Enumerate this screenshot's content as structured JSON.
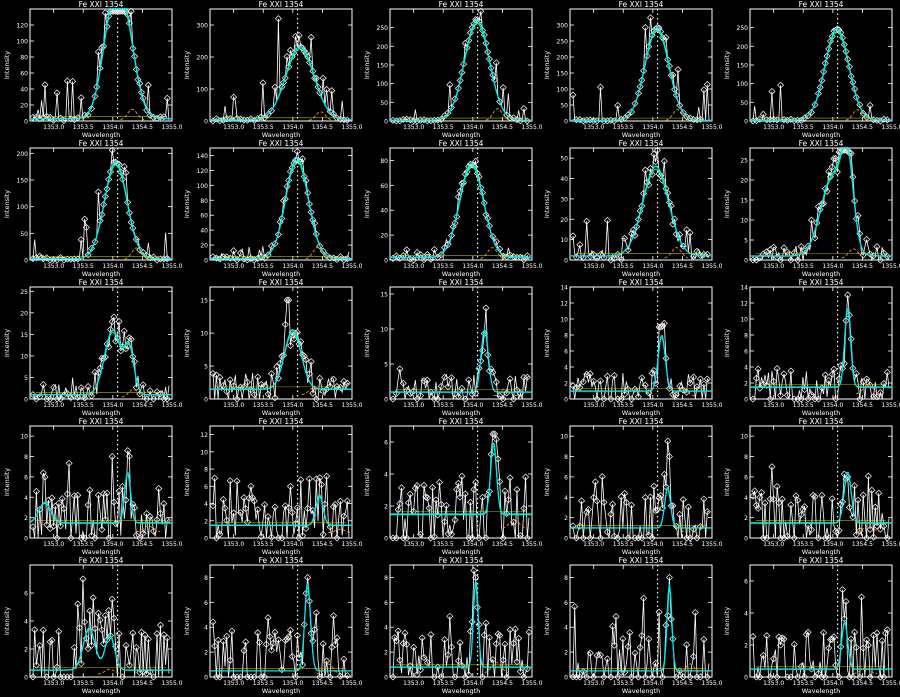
{
  "colors": {
    "background": "#000000",
    "axes": "#ffffff",
    "data": "#ffffff",
    "fit_cyan": "#00e5ff",
    "fit_green": "#00ff66",
    "component_orange": "#ff8c1a",
    "component_yellow": "#e0e000",
    "center_marker": "#ffffff"
  },
  "chart_data": [
    {
      "type": "line",
      "title": "Fe XXI 1354",
      "xlabel": "Wavelength",
      "ylabel": "Intensity",
      "xlim": [
        1352.6,
        1355.0
      ],
      "ylim": [
        0,
        140
      ],
      "xticks": [
        "1353.0",
        "1353.5",
        "1354.0",
        "1354.5",
        "1355.0"
      ],
      "yticks": [
        "0",
        "20",
        "40",
        "60",
        "80",
        "100",
        "120"
      ],
      "center": 1354.08,
      "peaks": [
        {
          "x": 1353.98,
          "amp": 112,
          "w": 0.17
        },
        {
          "x": 1354.22,
          "amp": 100,
          "w": 0.17
        }
      ],
      "baseline": 3,
      "noise": 4,
      "spike": null
    },
    {
      "type": "line",
      "title": "Fe XXI 1354",
      "xlabel": "Wavelength",
      "ylabel": "Intensity",
      "xlim": [
        1352.6,
        1355.0
      ],
      "ylim": [
        0,
        350
      ],
      "xticks": [
        "1353.0",
        "1353.5",
        "1354.0",
        "1354.5",
        "1355.0"
      ],
      "yticks": [
        "0",
        "100",
        "200",
        "300"
      ],
      "center": 1354.08,
      "peaks": [
        {
          "x": 1354.12,
          "amp": 230,
          "w": 0.24
        }
      ],
      "baseline": 3,
      "noise": 6,
      "spike": {
        "x": 1353.75,
        "amp": 320
      }
    },
    {
      "type": "line",
      "title": "Fe XXI 1354",
      "xlabel": "Wavelength",
      "ylabel": "Intensity",
      "xlim": [
        1352.6,
        1355.0
      ],
      "ylim": [
        0,
        300
      ],
      "xticks": [
        "1353.0",
        "1353.5",
        "1354.0",
        "1354.5",
        "1355.0"
      ],
      "yticks": [
        "0",
        "50",
        "100",
        "150",
        "200",
        "250"
      ],
      "center": 1354.08,
      "peaks": [
        {
          "x": 1354.07,
          "amp": 268,
          "w": 0.21
        }
      ],
      "baseline": 2,
      "noise": 4,
      "spike": null
    },
    {
      "type": "line",
      "title": "Fe XXI 1354",
      "xlabel": "Wavelength",
      "ylabel": "Intensity",
      "xlim": [
        1352.6,
        1355.0
      ],
      "ylim": [
        0,
        350
      ],
      "xticks": [
        "1353.0",
        "1353.5",
        "1354.0",
        "1354.5",
        "1355.0"
      ],
      "yticks": [
        "0",
        "50",
        "100",
        "150",
        "200",
        "250",
        "300"
      ],
      "center": 1354.08,
      "peaks": [
        {
          "x": 1354.07,
          "amp": 290,
          "w": 0.2
        }
      ],
      "baseline": 2,
      "noise": 4,
      "spike": null
    },
    {
      "type": "line",
      "title": "Fe XXI 1354",
      "xlabel": "Wavelength",
      "ylabel": "Intensity",
      "xlim": [
        1352.6,
        1355.0
      ],
      "ylim": [
        0,
        300
      ],
      "xticks": [
        "1353.0",
        "1353.5",
        "1354.0",
        "1354.5",
        "1355.0"
      ],
      "yticks": [
        "0",
        "50",
        "100",
        "150",
        "200",
        "250"
      ],
      "center": 1354.08,
      "peaks": [
        {
          "x": 1354.07,
          "amp": 245,
          "w": 0.2
        }
      ],
      "baseline": 2,
      "noise": 4,
      "spike": null
    },
    {
      "type": "line",
      "title": "Fe XXI 1354",
      "xlabel": "Wavelength",
      "ylabel": "Intensity",
      "xlim": [
        1352.6,
        1355.0
      ],
      "ylim": [
        0,
        210
      ],
      "xticks": [
        "1353.0",
        "1353.5",
        "1354.0",
        "1354.5",
        "1355.0"
      ],
      "yticks": [
        "0",
        "50",
        "100",
        "150",
        "200"
      ],
      "center": 1354.08,
      "peaks": [
        {
          "x": 1354.05,
          "amp": 182,
          "w": 0.19
        }
      ],
      "baseline": 2,
      "noise": 4,
      "spike": null
    },
    {
      "type": "line",
      "title": "Fe XXI 1354",
      "xlabel": "Wavelength",
      "ylabel": "Intensity",
      "xlim": [
        1352.6,
        1355.0
      ],
      "ylim": [
        0,
        150
      ],
      "xticks": [
        "1353.0",
        "1353.5",
        "1354.0",
        "1354.5",
        "1355.0"
      ],
      "yticks": [
        "0",
        "20",
        "40",
        "60",
        "80",
        "100",
        "120",
        "140"
      ],
      "center": 1354.08,
      "peaks": [
        {
          "x": 1354.07,
          "amp": 135,
          "w": 0.19
        }
      ],
      "baseline": 2,
      "noise": 3,
      "spike": null
    },
    {
      "type": "line",
      "title": "Fe XXI 1354",
      "xlabel": "Wavelength",
      "ylabel": "Intensity",
      "xlim": [
        1352.6,
        1355.0
      ],
      "ylim": [
        0,
        90
      ],
      "xticks": [
        "1353.0",
        "1353.5",
        "1354.0",
        "1354.5",
        "1355.0"
      ],
      "yticks": [
        "0",
        "20",
        "40",
        "60",
        "80"
      ],
      "center": 1354.08,
      "peaks": [
        {
          "x": 1353.98,
          "amp": 76,
          "w": 0.2
        }
      ],
      "baseline": 2,
      "noise": 3,
      "spike": null
    },
    {
      "type": "line",
      "title": "Fe XXI 1354",
      "xlabel": "Wavelength",
      "ylabel": "Intensity",
      "xlim": [
        1352.6,
        1355.0
      ],
      "ylim": [
        0,
        55
      ],
      "xticks": [
        "1353.0",
        "1353.5",
        "1354.0",
        "1354.5",
        "1355.0"
      ],
      "yticks": [
        "0",
        "10",
        "20",
        "30",
        "40",
        "50"
      ],
      "center": 1354.08,
      "peaks": [
        {
          "x": 1354.05,
          "amp": 44,
          "w": 0.22
        }
      ],
      "baseline": 2,
      "noise": 4,
      "spike": {
        "x": 1354.02,
        "amp": 52
      }
    },
    {
      "type": "line",
      "title": "Fe XXI 1354",
      "xlabel": "Wavelength",
      "ylabel": "Intensity",
      "xlim": [
        1352.6,
        1355.0
      ],
      "ylim": [
        0,
        28
      ],
      "xticks": [
        "1353.0",
        "1353.5",
        "1354.0",
        "1354.5",
        "1355.0"
      ],
      "yticks": [
        "0",
        "5",
        "10",
        "15",
        "20",
        "25"
      ],
      "center": 1354.08,
      "peaks": [
        {
          "x": 1354.0,
          "amp": 20,
          "w": 0.2
        },
        {
          "x": 1354.25,
          "amp": 19,
          "w": 0.1
        }
      ],
      "baseline": 1,
      "noise": 3,
      "spike": {
        "x": 1354.12,
        "amp": 27
      }
    },
    {
      "type": "line",
      "title": "Fe XXI 1354",
      "xlabel": "Wavelength",
      "ylabel": "Intensity",
      "xlim": [
        1352.6,
        1355.0
      ],
      "ylim": [
        0,
        26
      ],
      "xticks": [
        "1353.0",
        "1353.5",
        "1354.0",
        "1354.5",
        "1355.0"
      ],
      "yticks": [
        "0",
        "5",
        "10",
        "15",
        "20",
        "25"
      ],
      "center": 1354.08,
      "peaks": [
        {
          "x": 1354.0,
          "amp": 15,
          "w": 0.14
        },
        {
          "x": 1354.28,
          "amp": 10,
          "w": 0.08
        }
      ],
      "baseline": 1,
      "noise": 3,
      "spike": {
        "x": 1354.1,
        "amp": 18
      }
    },
    {
      "type": "line",
      "title": "Fe XXI 1354",
      "xlabel": "Wavelength",
      "ylabel": "Intensity",
      "xlim": [
        1352.6,
        1355.0
      ],
      "ylim": [
        0,
        17
      ],
      "xticks": [
        "1353.0",
        "1353.5",
        "1354.0",
        "1354.5",
        "1355.0"
      ],
      "yticks": [
        "0",
        "5",
        "10",
        "15"
      ],
      "center": 1354.08,
      "peaks": [
        {
          "x": 1354.0,
          "amp": 9,
          "w": 0.14
        }
      ],
      "baseline": 1.5,
      "noise": 3,
      "spike": {
        "x": 1353.92,
        "amp": 15
      }
    },
    {
      "type": "line",
      "title": "Fe XXI 1354",
      "xlabel": "Wavelength",
      "ylabel": "Intensity",
      "xlim": [
        1352.6,
        1355.0
      ],
      "ylim": [
        0,
        16
      ],
      "xticks": [
        "1353.0",
        "1353.5",
        "1354.0",
        "1354.5",
        "1355.0"
      ],
      "yticks": [
        "0",
        "5",
        "10",
        "15"
      ],
      "center": 1354.08,
      "peaks": [
        {
          "x": 1354.2,
          "amp": 9,
          "w": 0.06
        }
      ],
      "baseline": 1,
      "noise": 3,
      "spike": {
        "x": 1354.22,
        "amp": 13
      }
    },
    {
      "type": "line",
      "title": "Fe XXI 1354",
      "xlabel": "Wavelength",
      "ylabel": "Intensity",
      "xlim": [
        1352.6,
        1355.0
      ],
      "ylim": [
        0,
        14
      ],
      "xticks": [
        "1353.0",
        "1353.5",
        "1354.0",
        "1354.5",
        "1355.0"
      ],
      "yticks": [
        "0",
        "2",
        "4",
        "6",
        "8",
        "10",
        "12",
        "14"
      ],
      "center": 1354.08,
      "peaks": [
        {
          "x": 1354.15,
          "amp": 7,
          "w": 0.06
        }
      ],
      "baseline": 1,
      "noise": 3,
      "spike": {
        "x": 1354.12,
        "amp": 9
      }
    },
    {
      "type": "line",
      "title": "Fe XXI 1354",
      "xlabel": "Wavelength",
      "ylabel": "Intensity",
      "xlim": [
        1352.6,
        1355.0
      ],
      "ylim": [
        0,
        14
      ],
      "xticks": [
        "1353.0",
        "1353.5",
        "1354.0",
        "1354.5",
        "1355.0"
      ],
      "yticks": [
        "0",
        "2",
        "4",
        "6",
        "8",
        "10",
        "12",
        "14"
      ],
      "center": 1354.08,
      "peaks": [
        {
          "x": 1354.25,
          "amp": 10,
          "w": 0.05
        }
      ],
      "baseline": 1.5,
      "noise": 3,
      "spike": {
        "x": 1354.25,
        "amp": 13
      }
    },
    {
      "type": "line",
      "title": "Fe XXI 1354",
      "xlabel": "Wavelength",
      "ylabel": "Intensity",
      "xlim": [
        1352.6,
        1355.0
      ],
      "ylim": [
        0,
        11
      ],
      "xticks": [
        "1353.0",
        "1353.5",
        "1354.0",
        "1354.5",
        "1355.0"
      ],
      "yticks": [
        "0",
        "2",
        "4",
        "6",
        "8",
        "10"
      ],
      "center": 1354.08,
      "peaks": [
        {
          "x": 1354.25,
          "amp": 5,
          "w": 0.05
        },
        {
          "x": 1352.85,
          "amp": 2,
          "w": 0.1
        }
      ],
      "baseline": 1.5,
      "noise": 4,
      "spike": {
        "x": 1354.0,
        "amp": 8
      }
    },
    {
      "type": "line",
      "title": "Fe XXI 1354",
      "xlabel": "Wavelength",
      "ylabel": "Intensity",
      "xlim": [
        1352.6,
        1355.0
      ],
      "ylim": [
        0,
        13
      ],
      "xticks": [
        "1353.0",
        "1353.5",
        "1354.0",
        "1354.5",
        "1355.0"
      ],
      "yticks": [
        "0",
        "2",
        "4",
        "6",
        "8",
        "10",
        "12"
      ],
      "center": 1354.08,
      "peaks": [
        {
          "x": 1354.45,
          "amp": 3.5,
          "w": 0.06
        }
      ],
      "baseline": 1.5,
      "noise": 4,
      "spike": {
        "x": 1353.3,
        "amp": 6
      }
    },
    {
      "type": "line",
      "title": "Fe XXI 1354",
      "xlabel": "Wavelength",
      "ylabel": "Intensity",
      "xlim": [
        1352.6,
        1355.0
      ],
      "ylim": [
        0,
        7
      ],
      "xticks": [
        "1353.0",
        "1353.5",
        "1354.0",
        "1354.5",
        "1355.0"
      ],
      "yticks": [
        "0",
        "2",
        "4",
        "6"
      ],
      "center": 1354.08,
      "peaks": [
        {
          "x": 1354.35,
          "amp": 4.5,
          "w": 0.05
        }
      ],
      "baseline": 1.5,
      "noise": 3,
      "spike": {
        "x": 1354.35,
        "amp": 6.5
      }
    },
    {
      "type": "line",
      "title": "Fe XXI 1354",
      "xlabel": "Wavelength",
      "ylabel": "Intensity",
      "xlim": [
        1352.6,
        1355.0
      ],
      "ylim": [
        0,
        11
      ],
      "xticks": [
        "1353.0",
        "1353.5",
        "1354.0",
        "1354.5",
        "1355.0"
      ],
      "yticks": [
        "0",
        "2",
        "4",
        "6",
        "8",
        "10"
      ],
      "center": 1354.08,
      "peaks": [
        {
          "x": 1354.25,
          "amp": 4,
          "w": 0.05
        }
      ],
      "baseline": 1,
      "noise": 4,
      "spike": {
        "x": 1354.28,
        "amp": 8
      }
    },
    {
      "type": "line",
      "title": "Fe XXI 1354",
      "xlabel": "Wavelength",
      "ylabel": "Intensity",
      "xlim": [
        1352.6,
        1355.0
      ],
      "ylim": [
        0,
        11
      ],
      "xticks": [
        "1353.0",
        "1353.5",
        "1354.0",
        "1354.5",
        "1355.0"
      ],
      "yticks": [
        "0",
        "2",
        "4",
        "6",
        "8",
        "10"
      ],
      "center": 1354.08,
      "peaks": [
        {
          "x": 1354.25,
          "amp": 5,
          "w": 0.06
        }
      ],
      "baseline": 1.5,
      "noise": 4,
      "spike": {
        "x": 1354.25,
        "amp": 6
      }
    },
    {
      "type": "line",
      "title": "Fe XXI 1354",
      "xlabel": "Wavelength",
      "ylabel": "Intensity",
      "xlim": [
        1352.6,
        1355.0
      ],
      "ylim": [
        0,
        8
      ],
      "xticks": [
        "1353.0",
        "1353.5",
        "1354.0",
        "1354.5",
        "1355.0"
      ],
      "yticks": [
        "0",
        "2",
        "4",
        "6"
      ],
      "center": 1354.08,
      "peaks": [
        {
          "x": 1353.6,
          "amp": 3,
          "w": 0.1
        },
        {
          "x": 1353.95,
          "amp": 2.5,
          "w": 0.08
        }
      ],
      "baseline": 0.5,
      "noise": 4,
      "spike": {
        "x": 1353.5,
        "amp": 7
      }
    },
    {
      "type": "line",
      "title": "Fe XXI 1354",
      "xlabel": "Wavelength",
      "ylabel": "Intensity",
      "xlim": [
        1352.6,
        1355.0
      ],
      "ylim": [
        0,
        9
      ],
      "xticks": [
        "1353.0",
        "1353.5",
        "1354.0",
        "1354.5",
        "1355.0"
      ],
      "yticks": [
        "0",
        "2",
        "4",
        "6",
        "8"
      ],
      "center": 1354.08,
      "peaks": [
        {
          "x": 1354.25,
          "amp": 7,
          "w": 0.05
        }
      ],
      "baseline": 0.5,
      "noise": 4,
      "spike": {
        "x": 1354.25,
        "amp": 8
      }
    },
    {
      "type": "line",
      "title": "Fe XXI 1354",
      "xlabel": "Wavelength",
      "ylabel": "Intensity",
      "xlim": [
        1352.6,
        1355.0
      ],
      "ylim": [
        0,
        9
      ],
      "xticks": [
        "1353.0",
        "1353.5",
        "1354.0",
        "1354.5",
        "1355.0"
      ],
      "yticks": [
        "0",
        "2",
        "4",
        "6",
        "8"
      ],
      "center": 1354.08,
      "peaks": [
        {
          "x": 1354.05,
          "amp": 7,
          "w": 0.04
        }
      ],
      "baseline": 0.8,
      "noise": 4,
      "spike": {
        "x": 1354.05,
        "amp": 8
      }
    },
    {
      "type": "line",
      "title": "Fe XXI 1354",
      "xlabel": "Wavelength",
      "ylabel": "Intensity",
      "xlim": [
        1352.6,
        1355.0
      ],
      "ylim": [
        0,
        9
      ],
      "xticks": [
        "1353.0",
        "1353.5",
        "1354.0",
        "1354.5",
        "1355.0"
      ],
      "yticks": [
        "0",
        "2",
        "4",
        "6",
        "8"
      ],
      "center": 1354.08,
      "peaks": [
        {
          "x": 1354.28,
          "amp": 7,
          "w": 0.04
        }
      ],
      "baseline": 0.5,
      "noise": 4,
      "spike": {
        "x": 1354.28,
        "amp": 8
      }
    },
    {
      "type": "line",
      "title": "Fe XXI 1354",
      "xlabel": "Wavelength",
      "ylabel": "Intensity",
      "xlim": [
        1352.6,
        1355.0
      ],
      "ylim": [
        0,
        7
      ],
      "xticks": [
        "1353.0",
        "1353.5",
        "1354.0",
        "1354.5",
        "1355.0"
      ],
      "yticks": [
        "0",
        "2",
        "4",
        "6"
      ],
      "center": 1354.08,
      "peaks": [
        {
          "x": 1354.2,
          "amp": 3,
          "w": 0.05
        }
      ],
      "baseline": 0.5,
      "noise": 3,
      "spike": {
        "x": 1354.48,
        "amp": 5
      }
    }
  ]
}
